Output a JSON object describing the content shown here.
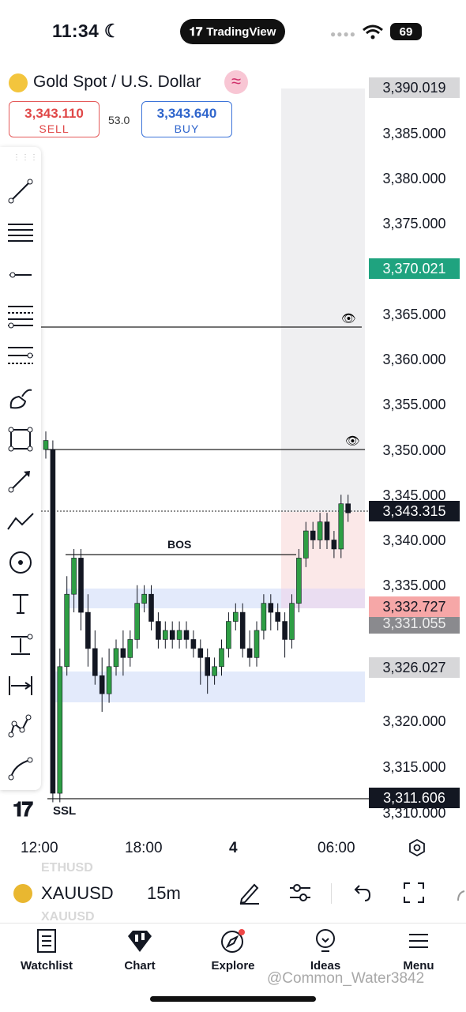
{
  "status": {
    "time": "11:34",
    "battery": "69"
  },
  "app": {
    "name": "TradingView"
  },
  "header": {
    "symbol_title": "Gold Spot / U.S. Dollar",
    "sell": {
      "price": "3,343.110",
      "label": "SELL"
    },
    "buy": {
      "price": "3,343.640",
      "label": "BUY"
    },
    "spread": "53.0"
  },
  "price_axis": {
    "ticks": [
      "3,385.000",
      "3,380.000",
      "3,375.000",
      "3,365.000",
      "3,360.000",
      "3,355.000",
      "3,350.000",
      "3,345.000",
      "3,340.000",
      "3,335.000",
      "3,320.000",
      "3,315.000",
      "3,310.000"
    ],
    "top_label": "3,390.019",
    "green_label": "3,370.021",
    "current_label": "3,343.315",
    "red_label": "3,332.727",
    "gray_label": "3,331.055",
    "light_label": "3,326.027",
    "bottom_label": "3,311.606"
  },
  "time_axis": {
    "labels": [
      "12:00",
      "18:00",
      "4",
      "06:00"
    ]
  },
  "annotations": {
    "bos": "BOS",
    "ssl": "SSL"
  },
  "bottom_bar": {
    "symbol": "XAUUSD",
    "interval": "15m",
    "ghost_above": "ETHUSD",
    "ghost_below": "XAUUSD"
  },
  "tabs": [
    {
      "label": "Watchlist",
      "icon": "watchlist-icon"
    },
    {
      "label": "Chart",
      "icon": "chart-icon"
    },
    {
      "label": "Explore",
      "icon": "explore-icon"
    },
    {
      "label": "Ideas",
      "icon": "ideas-icon"
    },
    {
      "label": "Menu",
      "icon": "menu-icon"
    }
  ],
  "watermark": "@Common_Water3842",
  "colors": {
    "up": "#2e9e44",
    "down": "#131722",
    "sell": "#e04747",
    "buy": "#2f65cc",
    "green_label": "#26a17b",
    "red_label": "#f7a8a8"
  }
}
